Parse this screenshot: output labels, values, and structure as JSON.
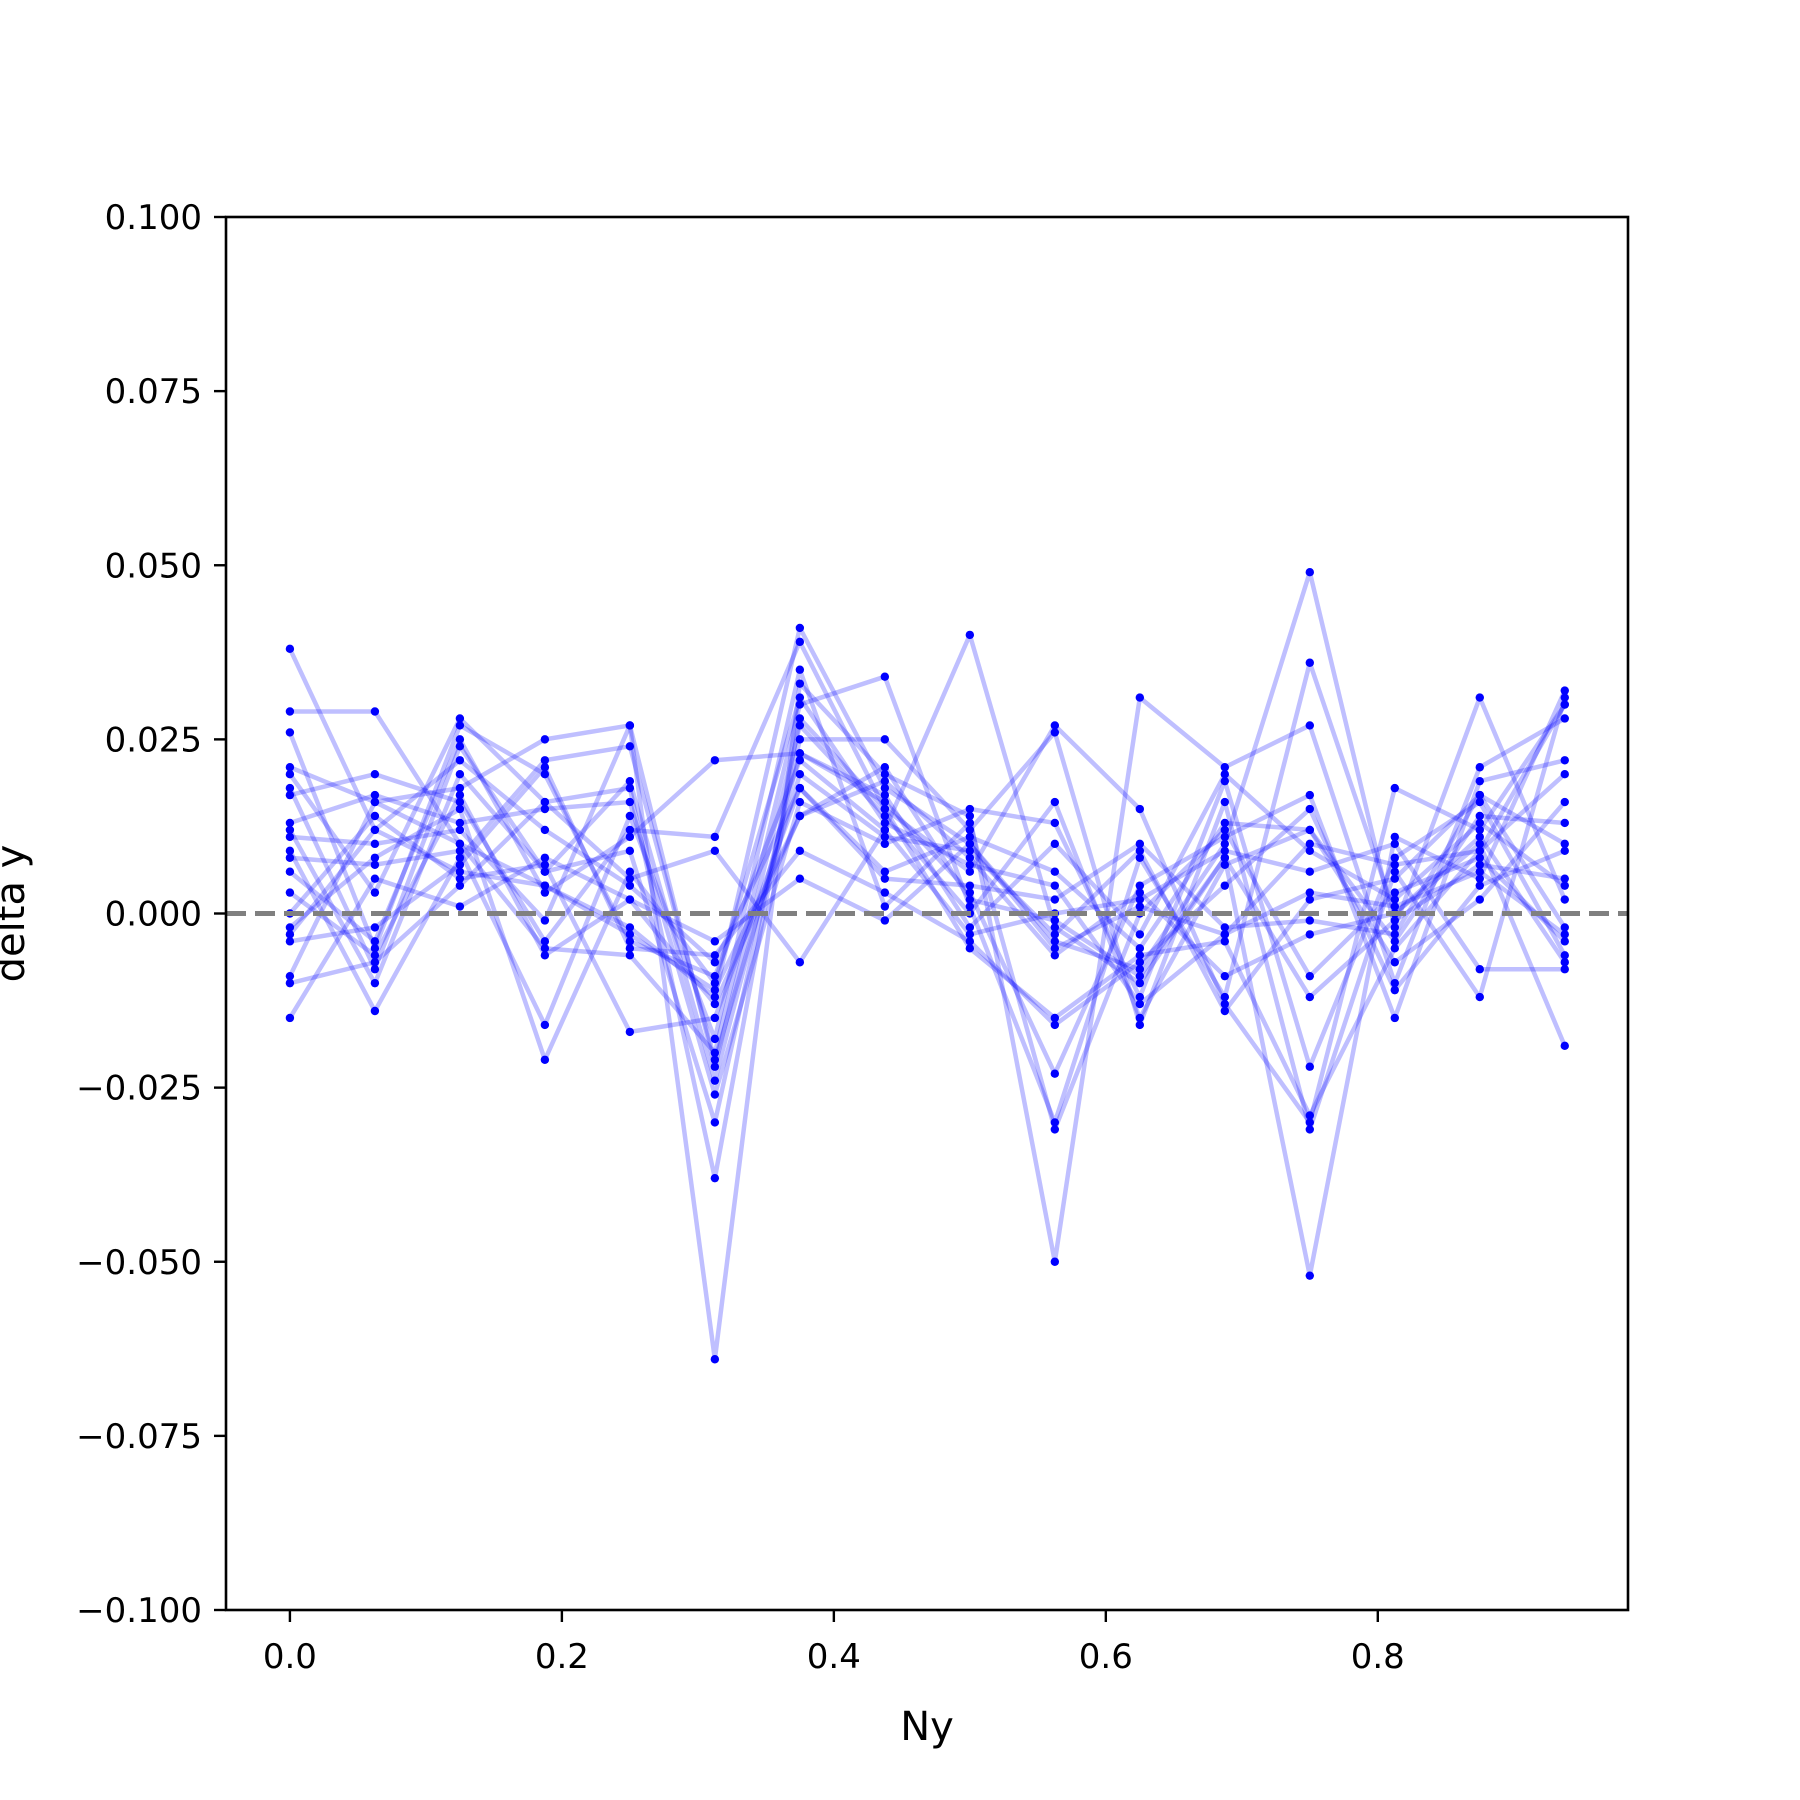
{
  "chart_data": {
    "type": "line",
    "xlabel": "Ny",
    "ylabel": "delta y",
    "xlim": [
      -0.047,
      0.984
    ],
    "ylim": [
      -0.1,
      0.1
    ],
    "xticks": [
      0.0,
      0.2,
      0.4,
      0.6,
      0.8
    ],
    "xtick_labels": [
      "0.0",
      "0.2",
      "0.4",
      "0.6",
      "0.8"
    ],
    "yticks": [
      0.1,
      0.075,
      0.05,
      0.025,
      0.0,
      -0.025,
      -0.05,
      -0.075,
      -0.1
    ],
    "ytick_labels": [
      "0.100",
      "0.075",
      "0.050",
      "0.025",
      "0.000",
      "−0.025",
      "−0.050",
      "−0.075",
      "−0.100"
    ],
    "grid": false,
    "reference_line": {
      "y": 0.0,
      "style": "dashed",
      "color": "#808080"
    },
    "line_color": "#0000ff",
    "marker_color": "#0000ff",
    "line_alpha": 0.25,
    "x": [
      0.0,
      0.0625,
      0.125,
      0.1875,
      0.25,
      0.3125,
      0.375,
      0.4375,
      0.5,
      0.5625,
      0.625,
      0.6875,
      0.75,
      0.8125,
      0.875,
      0.9375
    ],
    "series": [
      {
        "values": [
          0.038,
          0.012,
          0.006,
          0.004,
          -0.002,
          -0.012,
          0.041,
          0.018,
          0.01,
          -0.004,
          -0.008,
          0.01,
          0.049,
          -0.002,
          0.031,
          0.002
        ]
      },
      {
        "values": [
          0.029,
          0.029,
          0.01,
          -0.005,
          -0.006,
          -0.02,
          0.03,
          0.034,
          0.001,
          -0.03,
          0.008,
          -0.012,
          0.036,
          0.0,
          0.01,
          -0.019
        ]
      },
      {
        "values": [
          0.026,
          -0.005,
          0.027,
          0.02,
          -0.004,
          -0.009,
          0.022,
          0.012,
          0.04,
          -0.002,
          -0.01,
          0.008,
          -0.052,
          0.011,
          0.005,
          0.032
        ]
      },
      {
        "values": [
          0.021,
          0.016,
          0.018,
          0.025,
          0.027,
          -0.064,
          0.033,
          0.02,
          0.014,
          -0.05,
          0.031,
          0.021,
          0.027,
          -0.01,
          0.021,
          0.028
        ]
      },
      {
        "values": [
          0.02,
          0.003,
          0.028,
          0.016,
          0.018,
          -0.038,
          0.028,
          0.015,
          0.006,
          0.027,
          0.015,
          -0.013,
          -0.03,
          0.018,
          0.012,
          0.03
        ]
      },
      {
        "values": [
          0.018,
          -0.008,
          0.024,
          0.006,
          0.009,
          -0.03,
          0.025,
          0.025,
          0.012,
          0.026,
          -0.016,
          0.016,
          -0.031,
          0.006,
          -0.012,
          0.031
        ]
      },
      {
        "values": [
          0.017,
          0.02,
          0.016,
          -0.004,
          0.012,
          0.011,
          0.039,
          0.015,
          -0.005,
          -0.015,
          -0.006,
          -0.004,
          -0.029,
          -0.005,
          0.009,
          0.03
        ]
      },
      {
        "values": [
          0.013,
          0.017,
          0.013,
          0.015,
          0.016,
          -0.026,
          0.016,
          0.01,
          0.015,
          0.013,
          -0.012,
          0.019,
          -0.022,
          0.008,
          0.016,
          -0.006
        ]
      },
      {
        "values": [
          0.012,
          -0.01,
          0.02,
          0.006,
          0.019,
          -0.024,
          0.023,
          0.016,
          0.003,
          -0.023,
          0.004,
          0.011,
          0.017,
          -0.015,
          0.019,
          0.022
        ]
      },
      {
        "values": [
          0.011,
          0.01,
          0.012,
          -0.001,
          0.027,
          -0.022,
          0.027,
          0.014,
          0.0,
          0.016,
          -0.015,
          0.007,
          0.012,
          -0.004,
          0.014,
          0.013
        ]
      },
      {
        "values": [
          0.009,
          -0.014,
          0.008,
          0.022,
          0.024,
          -0.021,
          0.02,
          0.011,
          0.009,
          -0.003,
          0.009,
          -0.014,
          0.002,
          0.005,
          0.017,
          0.01
        ]
      },
      {
        "values": [
          0.008,
          0.007,
          0.009,
          -0.016,
          0.014,
          -0.018,
          0.035,
          0.001,
          0.013,
          -0.031,
          0.0,
          0.012,
          -0.009,
          0.003,
          0.008,
          -0.004
        ]
      },
      {
        "values": [
          0.006,
          -0.004,
          0.025,
          0.003,
          0.011,
          0.022,
          0.023,
          0.017,
          -0.002,
          0.01,
          -0.003,
          0.02,
          0.009,
          0.002,
          0.013,
          0.004
        ]
      },
      {
        "values": [
          0.003,
          -0.006,
          0.017,
          -0.006,
          0.002,
          -0.013,
          0.014,
          0.019,
          0.008,
          -0.006,
          0.003,
          -0.009,
          -0.003,
          0.0,
          0.011,
          -0.007
        ]
      },
      {
        "values": [
          0.0,
          0.014,
          0.005,
          0.007,
          -0.017,
          -0.015,
          0.018,
          0.006,
          0.011,
          0.006,
          -0.005,
          0.013,
          0.012,
          -0.007,
          0.002,
          0.016
        ]
      },
      {
        "values": [
          -0.002,
          0.008,
          0.015,
          -0.021,
          0.006,
          -0.01,
          0.031,
          0.013,
          0.007,
          0.004,
          -0.013,
          -0.003,
          0.01,
          0.007,
          0.009,
          0.02
        ]
      },
      {
        "values": [
          -0.003,
          0.012,
          0.022,
          0.012,
          0.004,
          -0.007,
          0.018,
          0.005,
          0.004,
          0.002,
          0.01,
          -0.002,
          -0.001,
          -0.003,
          0.017,
          -0.002
        ]
      },
      {
        "values": [
          -0.004,
          -0.002,
          0.007,
          0.021,
          -0.005,
          -0.006,
          0.009,
          0.003,
          -0.004,
          -0.016,
          -0.007,
          0.004,
          0.015,
          -0.011,
          0.004,
          0.009
        ]
      },
      {
        "values": [
          -0.009,
          0.016,
          0.01,
          0.004,
          -0.003,
          -0.011,
          0.014,
          0.021,
          0.002,
          -0.001,
          -0.009,
          0.008,
          -0.012,
          -0.001,
          0.007,
          0.005
        ]
      },
      {
        "values": [
          -0.01,
          -0.007,
          0.004,
          0.016,
          0.005,
          0.009,
          -0.007,
          0.012,
          -0.003,
          0.0,
          0.002,
          0.009,
          0.006,
          0.01,
          -0.008,
          -0.008
        ]
      },
      {
        "values": [
          -0.015,
          0.005,
          0.001,
          0.008,
          0.002,
          -0.004,
          0.005,
          -0.001,
          0.01,
          -0.005,
          0.001,
          -0.003,
          0.003,
          0.001,
          0.006,
          -0.003
        ]
      }
    ]
  }
}
